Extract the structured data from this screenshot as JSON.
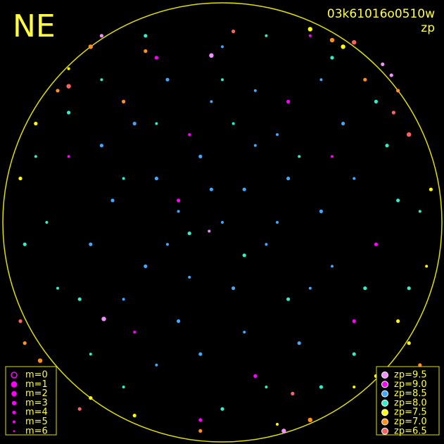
{
  "chart_data": {
    "type": "scatter",
    "title": "NE",
    "subtitle": "03k61016o0510w",
    "color_label": "zp",
    "xlim": [
      -1,
      1
    ],
    "ylim": [
      -1,
      1
    ],
    "mag_legend": [
      "m=0",
      "m=1",
      "m=2",
      "m=3",
      "m=4",
      "m=5",
      "m=6"
    ],
    "series": [
      {
        "name": "zp=9.5",
        "color": "#f090ff",
        "x": [
          -0.55,
          -0.05,
          0.28,
          0.73,
          0.77,
          -0.78,
          -0.06,
          -0.54
        ],
        "y": [
          0.85,
          0.76,
          -0.95,
          0.72,
          0.67,
          -0.78,
          -0.04,
          -0.44
        ],
        "m": [
          4,
          3,
          3,
          4,
          4,
          4,
          5,
          3
        ]
      },
      {
        "name": "zp=9.0",
        "color": "#ff00ff",
        "x": [
          -0.3,
          0.5,
          -0.2,
          0.3,
          -0.7,
          0.6,
          -0.4,
          0.15,
          -0.1,
          0.4,
          0.7,
          -0.15
        ],
        "y": [
          0.75,
          0.3,
          0.1,
          0.55,
          0.3,
          -0.45,
          -0.5,
          -0.7,
          -0.9,
          0.85,
          -0.1,
          0.4
        ],
        "m": [
          4,
          5,
          4,
          4,
          5,
          4,
          5,
          4,
          4,
          5,
          4,
          5
        ]
      },
      {
        "name": "zp=8.5",
        "color": "#40a8ff",
        "x": [
          -0.3,
          -0.2,
          -0.1,
          0.0,
          0.1,
          -0.25,
          -0.35,
          0.2,
          0.05,
          -0.15,
          0.3,
          0.25,
          -0.4,
          -0.05,
          0.15,
          0.45,
          0.4,
          -0.5,
          -0.45,
          -0.2,
          0.1,
          0.35,
          -0.3,
          0.55,
          0.6,
          -0.6,
          0.0,
          -0.1,
          0.25,
          -0.05,
          0.5,
          -0.55,
          0.15,
          -0.25,
          0.45
        ],
        "y": [
          0.2,
          0.05,
          0.3,
          0.0,
          0.15,
          -0.1,
          -0.2,
          -0.1,
          -0.3,
          -0.25,
          0.2,
          0.4,
          0.45,
          0.55,
          0.6,
          0.05,
          -0.3,
          0.1,
          -0.35,
          -0.45,
          -0.5,
          -0.55,
          -0.65,
          0.45,
          0.2,
          -0.1,
          0.8,
          -0.6,
          0.0,
          0.15,
          -0.2,
          0.35,
          0.35,
          0.65,
          0.65
        ],
        "m": [
          4,
          5,
          4,
          5,
          4,
          5,
          4,
          5,
          4,
          5,
          4,
          5,
          4,
          5,
          5,
          4,
          5,
          4,
          5,
          4,
          5,
          4,
          5,
          4,
          5,
          4,
          5,
          4,
          5,
          4,
          5,
          4,
          5,
          4,
          5
        ]
      },
      {
        "name": "zp=8.0",
        "color": "#30f0c8",
        "x": [
          -0.7,
          0.7,
          -0.8,
          0.8,
          -0.6,
          0.6,
          0.0,
          0.2,
          -0.35,
          0.35,
          -0.15,
          0.05,
          0.3,
          -0.45,
          0.65,
          -0.75,
          0.85,
          -0.85,
          0.45,
          -0.45,
          0.1,
          -0.3,
          0.5,
          -0.55,
          0.75,
          0.2,
          -0.65,
          0.9,
          -0.9,
          0.0
        ],
        "y": [
          0.5,
          0.55,
          0.0,
          0.1,
          -0.6,
          -0.6,
          -0.85,
          0.85,
          0.85,
          0.3,
          -0.05,
          0.45,
          -0.35,
          0.2,
          -0.3,
          -0.3,
          -0.3,
          0.3,
          -0.75,
          -0.75,
          -0.15,
          0.45,
          0.75,
          0.65,
          0.35,
          -0.75,
          -0.35,
          0.05,
          -0.1,
          0.65
        ],
        "m": [
          4,
          4,
          5,
          4,
          5,
          4,
          4,
          5,
          4,
          5,
          4,
          5,
          4,
          5,
          4,
          5,
          4,
          5,
          4,
          5,
          4,
          5,
          4,
          5,
          4,
          5,
          4,
          5,
          4,
          5
        ]
      },
      {
        "name": "zp=7.5",
        "color": "#ffff00",
        "x": [
          -0.85,
          0.85,
          0.93,
          -0.92,
          0.4,
          -0.4,
          0.7,
          -0.7,
          0.95,
          -0.6,
          0.25,
          0.55,
          0.8,
          0.6
        ],
        "y": [
          0.45,
          -0.55,
          -0.2,
          0.2,
          0.88,
          -0.88,
          -0.7,
          0.7,
          0.15,
          -0.8,
          -0.92,
          0.8,
          -0.45,
          -0.75
        ],
        "m": [
          4,
          4,
          5,
          4,
          3,
          4,
          4,
          5,
          4,
          4,
          5,
          3,
          4,
          5
        ]
      },
      {
        "name": "zp=7.0",
        "color": "#ff9020",
        "x": [
          -0.75,
          -0.83,
          0.8,
          -0.35,
          0.4,
          -0.9,
          0.9,
          -0.6,
          0.65,
          -0.1,
          0.5,
          -0.45
        ],
        "y": [
          0.6,
          -0.63,
          0.6,
          0.78,
          -0.9,
          -0.55,
          -0.65,
          0.8,
          0.65,
          -0.95,
          0.83,
          0.55
        ],
        "m": [
          4,
          3,
          4,
          4,
          3,
          4,
          4,
          3,
          4,
          4,
          3,
          4
        ]
      },
      {
        "name": "zp=6.5",
        "color": "#ff6060",
        "x": [
          -0.7,
          -0.65,
          0.78,
          -0.92,
          0.85,
          0.32,
          0.05,
          0.6
        ],
        "y": [
          0.62,
          -0.85,
          0.5,
          -0.45,
          0.4,
          -0.78,
          0.87,
          0.82
        ],
        "m": [
          3,
          4,
          4,
          4,
          3,
          4,
          4,
          3
        ]
      }
    ]
  }
}
